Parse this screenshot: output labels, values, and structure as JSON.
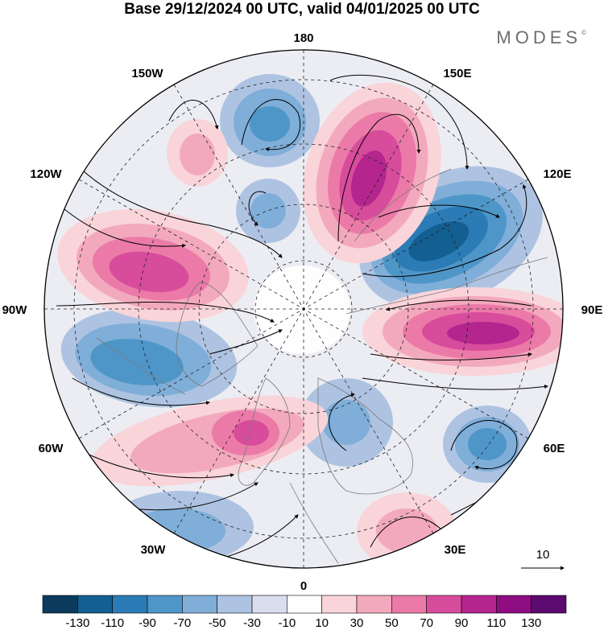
{
  "title": "Base 29/12/2024 00 UTC, valid 04/01/2025 00 UTC",
  "brand": "MODES",
  "brand_mark": "©",
  "longitude_labels": {
    "top": "180",
    "top_right": "150E",
    "right_upper": "120E",
    "right": "90E",
    "right_lower": "60E",
    "bottom_right": "30E",
    "bottom": "0",
    "bottom_left": "30W",
    "left_lower": "60W",
    "left": "90W",
    "left_upper": "120W",
    "top_left": "150W"
  },
  "reference_vector": {
    "label": "10"
  },
  "colorbar": {
    "ticks": [
      "-130",
      "-110",
      "-90",
      "-70",
      "-50",
      "-30",
      "-10",
      "10",
      "30",
      "50",
      "70",
      "90",
      "110",
      "130"
    ],
    "colors": [
      "#0c3b5e",
      "#135f91",
      "#2b7bb6",
      "#4f96c8",
      "#7faed8",
      "#aec3e2",
      "#d9ddee",
      "#ffffff",
      "#f9d4d9",
      "#f3a9bd",
      "#eb7aa8",
      "#d84c9c",
      "#b4258e",
      "#8e0d80",
      "#5c0a70"
    ]
  },
  "colors": {
    "background": "#ffffff",
    "land_outline": "#7a7a7a",
    "grid": "#222222"
  }
}
